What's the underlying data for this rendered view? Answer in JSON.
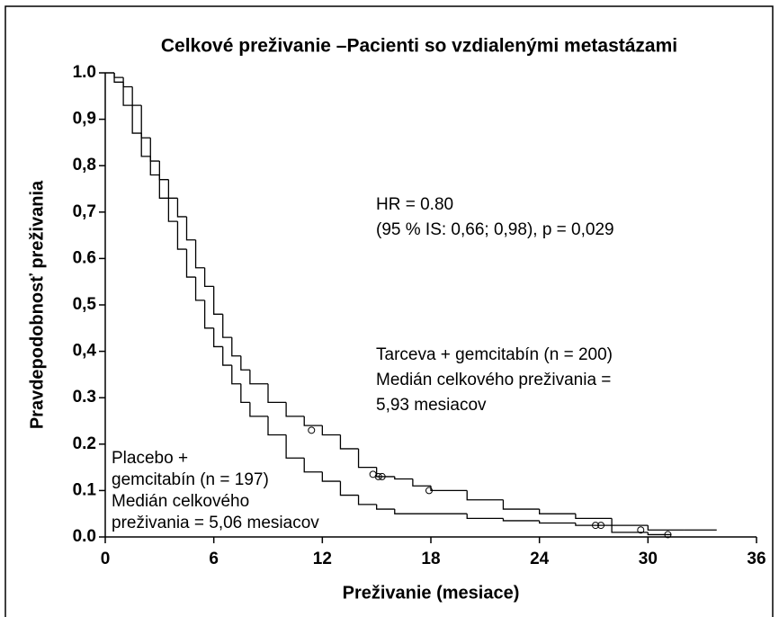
{
  "chart_data": {
    "type": "step",
    "title": "Celkové preživanie –Pacienti so vzdialenými metastázami",
    "xlabel": "Preživanie (mesiace)",
    "ylabel": "Pravdepodobnosť preživania",
    "xlim": [
      0,
      36
    ],
    "xticks": [
      0,
      6,
      12,
      18,
      24,
      30,
      36
    ],
    "ylim": [
      0,
      1
    ],
    "yticks": [
      {
        "value": 0,
        "label": "0.0"
      },
      {
        "value": 0.1,
        "label": "0.1"
      },
      {
        "value": 0.2,
        "label": "0.2"
      },
      {
        "value": 0.3,
        "label": "0.3"
      },
      {
        "value": 0.4,
        "label": "0,4"
      },
      {
        "value": 0.5,
        "label": "0,5"
      },
      {
        "value": 0.6,
        "label": "0.6"
      },
      {
        "value": 0.7,
        "label": "0,7"
      },
      {
        "value": 0.8,
        "label": "0,8"
      },
      {
        "value": 0.9,
        "label": "0,9"
      },
      {
        "value": 1,
        "label": "1.0"
      }
    ],
    "annotations": [
      "HR = 0.80",
      "(95 % IS: 0,66; 0,98), p = 0,029",
      "Tarceva + gemcitabín (n = 200)",
      "Medián celkového preživania =",
      "5,93 mesiacov",
      "Placebo +",
      "gemcitabín (n = 197)",
      "Medián celkového",
      "preživania = 5,06 mesiacov"
    ],
    "series": [
      {
        "color": "#000000",
        "x": [
          0,
          0.5,
          1,
          1.5,
          2,
          2.5,
          3,
          3.5,
          4,
          4.5,
          5,
          5.5,
          6,
          6.5,
          7,
          7.5,
          8,
          9,
          10,
          11,
          12,
          13,
          14,
          15,
          16,
          17,
          18,
          20,
          22,
          24,
          26,
          28,
          30,
          32,
          33.8
        ],
        "values": [
          1,
          0.99,
          0.97,
          0.93,
          0.86,
          0.81,
          0.77,
          0.73,
          0.69,
          0.64,
          0.58,
          0.54,
          0.48,
          0.43,
          0.39,
          0.36,
          0.33,
          0.29,
          0.26,
          0.24,
          0.22,
          0.19,
          0.15,
          0.13,
          0.125,
          0.11,
          0.1,
          0.08,
          0.06,
          0.05,
          0.04,
          0.025,
          0.015,
          0.015,
          0.015
        ],
        "censored": {
          "x": [
            11.4,
            14.8,
            15.1,
            15.3,
            17.9,
            27.1,
            27.4,
            29.6
          ],
          "values": [
            0.23,
            0.135,
            0.13,
            0.13,
            0.1,
            0.025,
            0.025,
            0.015
          ]
        }
      },
      {
        "color": "#000000",
        "x": [
          0,
          0.5,
          1,
          1.5,
          2,
          2.5,
          3,
          3.5,
          4,
          4.5,
          5,
          5.5,
          6,
          6.5,
          7,
          7.5,
          8,
          9,
          10,
          11,
          12,
          13,
          14,
          15,
          16,
          18,
          20,
          22,
          24,
          26,
          28,
          30,
          31.3
        ],
        "values": [
          1,
          0.98,
          0.93,
          0.87,
          0.82,
          0.78,
          0.73,
          0.68,
          0.62,
          0.56,
          0.51,
          0.45,
          0.41,
          0.37,
          0.33,
          0.29,
          0.26,
          0.22,
          0.17,
          0.14,
          0.12,
          0.09,
          0.07,
          0.06,
          0.05,
          0.05,
          0.04,
          0.035,
          0.03,
          0.025,
          0.01,
          0.005,
          0.005
        ],
        "censored": {
          "x": [
            31.1
          ],
          "values": [
            0.005
          ]
        }
      }
    ]
  }
}
